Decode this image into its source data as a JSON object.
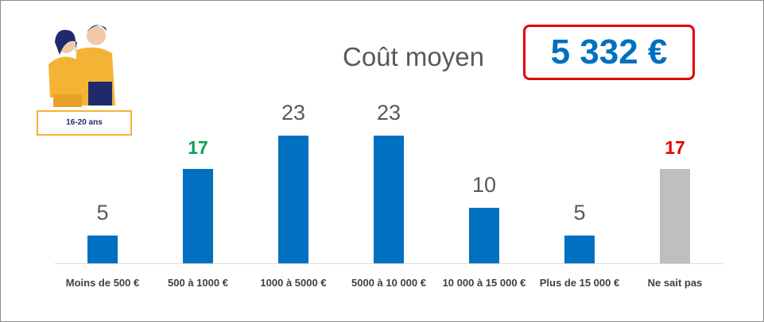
{
  "chart_data": {
    "type": "bar",
    "title": "Coût moyen",
    "highlight": "5 332 €",
    "badge": "16-20 ans",
    "categories": [
      "Moins de 500 €",
      "500 à 1000 €",
      "1000 à 5000 €",
      "5000 à 10 000 €",
      "10 000 à 15 000 €",
      "Plus de 15 000 €",
      "Ne sait pas"
    ],
    "values": [
      5,
      17,
      23,
      23,
      10,
      5,
      17
    ],
    "colors": [
      "#0070c0",
      "#0070c0",
      "#0070c0",
      "#0070c0",
      "#0070c0",
      "#0070c0",
      "#bfbfbf"
    ],
    "label_colors": [
      "#595959",
      "#00a651",
      "#595959",
      "#595959",
      "#595959",
      "#595959",
      "#e00000"
    ]
  }
}
